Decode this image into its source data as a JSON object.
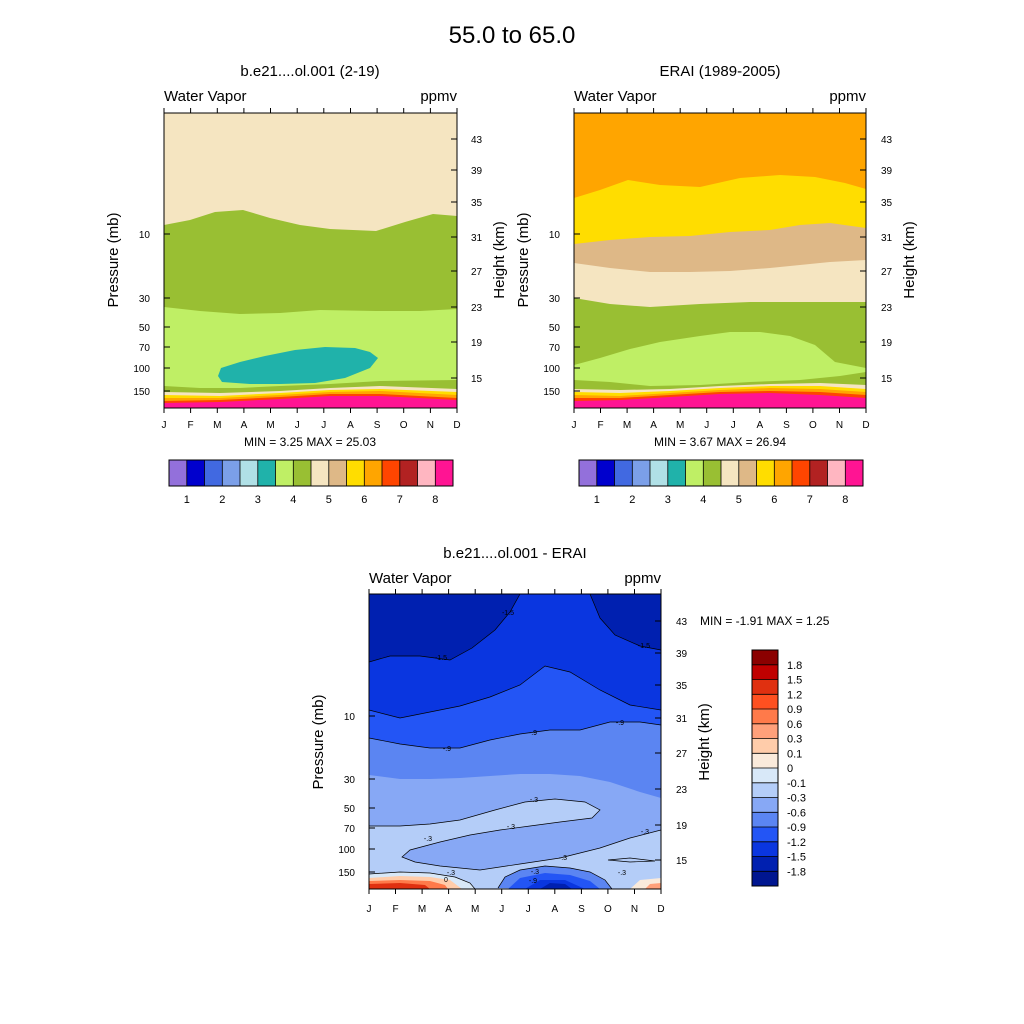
{
  "title": "55.0 to  65.0",
  "chart_data": [
    {
      "type": "contour",
      "panel_title": "b.e21....ol.001 (2-19)",
      "left_label": "Water Vapor",
      "right_label": "ppmv",
      "ylabel": "Pressure (mb)",
      "ylabel_right": "Height (km)",
      "months": [
        "J",
        "F",
        "M",
        "A",
        "M",
        "J",
        "J",
        "A",
        "S",
        "O",
        "N",
        "D"
      ],
      "pressure_ticks": [
        "10",
        "30",
        "50",
        "70",
        "100",
        "150"
      ],
      "height_ticks": [
        "43",
        "39",
        "35",
        "31",
        "27",
        "23",
        "19",
        "15"
      ],
      "stats": "MIN =   3.25  MAX =  25.03",
      "colorbar_labels": [
        "1",
        "2",
        "3",
        "4",
        "5",
        "6",
        "7",
        "8"
      ]
    },
    {
      "type": "contour",
      "panel_title": "ERAI (1989-2005)",
      "left_label": "Water Vapor",
      "right_label": "ppmv",
      "ylabel": "Pressure (mb)",
      "ylabel_right": "Height (km)",
      "months": [
        "J",
        "F",
        "M",
        "A",
        "M",
        "J",
        "J",
        "A",
        "S",
        "O",
        "N",
        "D"
      ],
      "pressure_ticks": [
        "10",
        "30",
        "50",
        "70",
        "100",
        "150"
      ],
      "height_ticks": [
        "43",
        "39",
        "35",
        "31",
        "27",
        "23",
        "19",
        "15"
      ],
      "stats": "MIN =   3.67  MAX =  26.94",
      "colorbar_labels": [
        "1",
        "2",
        "3",
        "4",
        "5",
        "6",
        "7",
        "8"
      ]
    },
    {
      "type": "contour",
      "panel_title": "b.e21....ol.001 - ERAI",
      "left_label": "Water Vapor",
      "right_label": "ppmv",
      "ylabel": "Pressure (mb)",
      "ylabel_right": "Height (km)",
      "months": [
        "J",
        "F",
        "M",
        "A",
        "M",
        "J",
        "J",
        "A",
        "S",
        "O",
        "N",
        "D"
      ],
      "pressure_ticks": [
        "10",
        "30",
        "50",
        "70",
        "100",
        "150"
      ],
      "height_ticks": [
        "43",
        "39",
        "35",
        "31",
        "27",
        "23",
        "19",
        "15"
      ],
      "stats": "MIN =  -1.91  MAX =   1.25",
      "contour_labels": [
        "-1.5",
        "-1.5",
        "-1.5",
        "-.9",
        "-.9",
        "-.9",
        "-.3",
        "-.3",
        "-.3",
        "-.3",
        "-.3",
        "-.3",
        "-.3",
        "-.9",
        "-.3",
        "0"
      ],
      "colorbar_labels": [
        "1.8",
        "1.5",
        "1.2",
        "0.9",
        "0.6",
        "0.3",
        "0.1",
        "0",
        "-0.1",
        "-0.3",
        "-0.6",
        "-0.9",
        "-1.2",
        "-1.5",
        "-1.8"
      ]
    }
  ],
  "colors": {
    "wv_scale": [
      "#9370db",
      "#0000cd",
      "#4169e1",
      "#7b9fe8",
      "#b0e0e6",
      "#20b2aa",
      "#bfef65",
      "#99bf33",
      "#f5e5c1",
      "#deb887",
      "#ffdd00",
      "#ffa500",
      "#ff4500",
      "#b22222",
      "#ffb6c1",
      "#ff1493"
    ],
    "diff_scale": [
      "#8b0000",
      "#c00000",
      "#e03010",
      "#ff5020",
      "#ff7a4a",
      "#ffa07a",
      "#ffccaa",
      "#faeadb",
      "#d8e8f8",
      "#b4cdf8",
      "#87a8f5",
      "#5b85f2",
      "#2355f5",
      "#0a36e0",
      "#0020b0",
      "#001690"
    ]
  }
}
